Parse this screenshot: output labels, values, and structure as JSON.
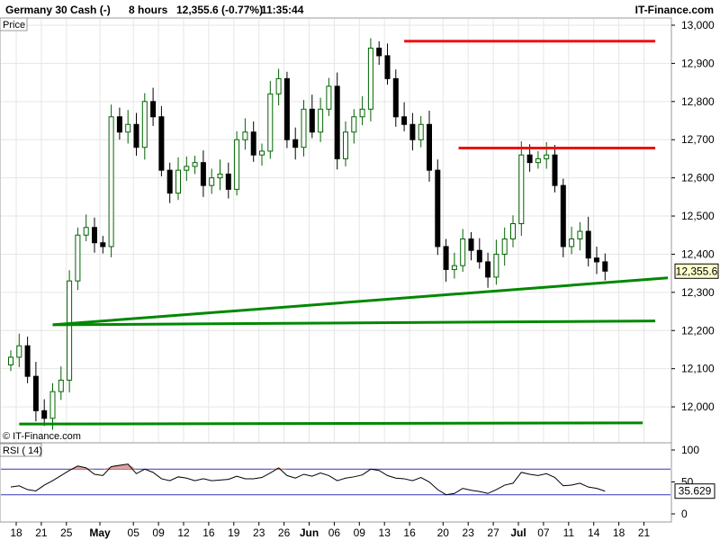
{
  "header": {
    "title": "Germany 30 Cash (-)",
    "timeframe": "8 hours",
    "quote": "12,355.6 (-0.77%)",
    "time": "11:35:44",
    "brand": "IT-Finance.com"
  },
  "price_panel": {
    "label": "Price",
    "copyright": "© IT-Finance.com"
  },
  "rsi_panel": {
    "label": "RSI ( 14)",
    "current_value_label": "35.629"
  },
  "colors": {
    "up_candle": "#006400",
    "down_candle": "#000000",
    "resistance": "#ee1111",
    "support": "#008800",
    "rsi_band": "#3333bb",
    "rsi_overbought_fill": "#e3a0a0",
    "grid": "#e6e6e6"
  },
  "chart_data": [
    {
      "type": "candlestick",
      "title": "Germany 30 Cash (-)",
      "timeframe": "8 hours",
      "last_price": 12355.6,
      "change_pct": -0.77,
      "last_price_label": "12,355.6",
      "ylim": [
        11920,
        13000
      ],
      "y_ticks": [
        12000,
        12100,
        12200,
        12300,
        12400,
        12500,
        12600,
        12700,
        12800,
        12900,
        13000
      ],
      "y_tick_labels": [
        "12,000",
        "12,100",
        "12,200",
        "12,300",
        "12,400",
        "12,500",
        "12,600",
        "12,700",
        "12,800",
        "12,900",
        "13,000"
      ],
      "x_tick_labels": [
        "18",
        "21",
        "25",
        "May",
        "05",
        "09",
        "12",
        "16",
        "19",
        "23",
        "26",
        "Jun",
        "06",
        "09",
        "13",
        "16",
        "20",
        "23",
        "27",
        "Jul",
        "07",
        "11",
        "14",
        "18",
        "21"
      ],
      "x_tick_index": [
        0,
        3,
        6,
        10,
        14,
        17,
        20,
        23,
        26,
        29,
        32,
        35,
        38,
        41,
        44,
        47,
        51,
        54,
        57,
        60,
        63,
        66,
        69,
        72,
        75
      ],
      "bold_x_ticks": [
        "May",
        "Jun",
        "Jul"
      ],
      "closes": [
        12130,
        12160,
        12080,
        11990,
        11970,
        12040,
        12070,
        12330,
        12450,
        12470,
        12430,
        12420,
        12760,
        12720,
        12740,
        12680,
        12800,
        12760,
        12620,
        12560,
        12620,
        12630,
        12640,
        12580,
        12600,
        12610,
        12570,
        12700,
        12720,
        12660,
        12670,
        12820,
        12860,
        12700,
        12680,
        12780,
        12720,
        12780,
        12840,
        12650,
        12720,
        12760,
        12780,
        12940,
        12920,
        12860,
        12760,
        12740,
        12700,
        12740,
        12620,
        12420,
        12360,
        12370,
        12440,
        12410,
        12380,
        12340,
        12400,
        12440,
        12480,
        12660,
        12640,
        12650,
        12660,
        12580,
        12420,
        12440,
        12460,
        12390,
        12380,
        12355.6
      ],
      "trendlines": [
        {
          "role": "resistance",
          "x": [
            47.0,
            77.0
          ],
          "y": [
            12958,
            12958
          ]
        },
        {
          "role": "resistance",
          "x": [
            53.5,
            77.0
          ],
          "y": [
            12678,
            12678
          ]
        },
        {
          "role": "support",
          "x": [
            5.0,
            78.5
          ],
          "y": [
            12215,
            12338
          ]
        },
        {
          "role": "support",
          "x": [
            5.0,
            77.0
          ],
          "y": [
            12215,
            12225
          ]
        },
        {
          "role": "support",
          "x": [
            1.0,
            75.5
          ],
          "y": [
            11955,
            11958
          ]
        }
      ]
    },
    {
      "type": "line",
      "title": "RSI ( 14)",
      "ylim": [
        0,
        100
      ],
      "y_ticks": [
        0,
        50,
        100
      ],
      "y_tick_labels": [
        "0",
        "50",
        "100"
      ],
      "bands": [
        70,
        30
      ],
      "last_value": 35.629,
      "values": [
        42,
        44,
        38,
        36,
        45,
        52,
        60,
        68,
        75,
        72,
        62,
        60,
        74,
        76,
        78,
        63,
        70,
        65,
        55,
        52,
        58,
        56,
        52,
        55,
        52,
        53,
        54,
        59,
        55,
        55,
        57,
        64,
        72,
        60,
        56,
        62,
        59,
        64,
        60,
        52,
        56,
        58,
        61,
        70,
        68,
        60,
        56,
        55,
        52,
        57,
        50,
        38,
        30,
        32,
        40,
        37,
        35,
        32,
        38,
        45,
        48,
        65,
        62,
        60,
        63,
        57,
        44,
        45,
        48,
        42,
        40,
        35.6
      ]
    }
  ]
}
